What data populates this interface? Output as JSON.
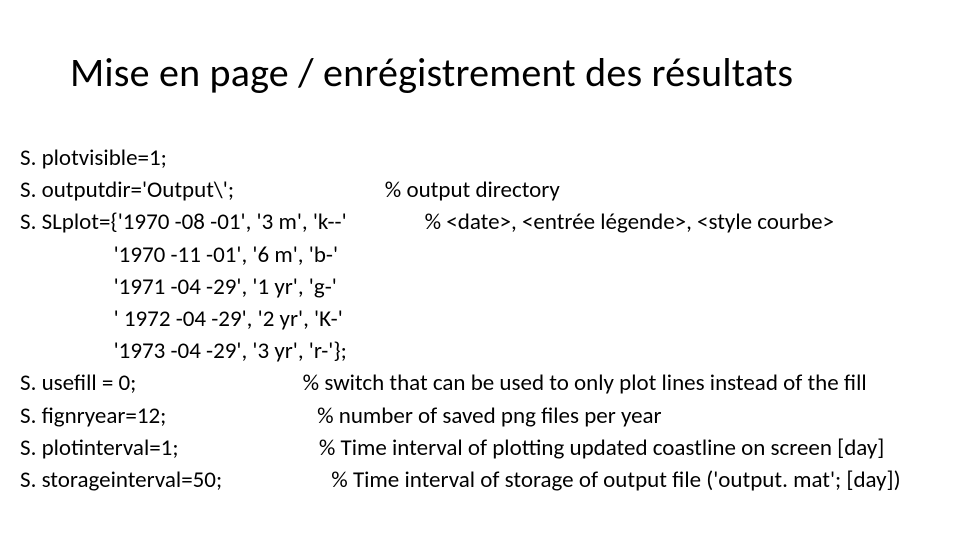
{
  "title": "Mise en page / enrégistrement des résultats",
  "lines": {
    "l1": "S. plotvisible=1;",
    "l2": "S. outputdir='Output\\';                             % output directory",
    "l3": "S. SLplot={'1970 -08 -01', '3 m', 'k--'               % <date>, <entrée légende>, <style courbe>",
    "l4": "                  '1970 -11 -01', '6 m', 'b-'",
    "l5": "                  '1971 -04 -29', '1 yr', 'g-'",
    "l6": "                  ' 1972 -04 -29', '2 yr', 'K-'",
    "l7": "                  '1973 -04 -29', '3 yr', 'r-'};",
    "l8": "S. usefill = 0;                                % switch that can be used to only plot lines instead of the fill",
    "l9": "S. fignryear=12;                             % number of saved png files per year",
    "l10": "S. plotinterval=1;                           % Time interval of plotting updated coastline on screen [day]",
    "l11": "S. storageinterval=50;                     % Time interval of storage of output file ('output. mat'; [day])"
  },
  "style": {
    "title_fontsize": 40,
    "body_fontsize": 23,
    "title_color": "#000000",
    "body_color": "#000000",
    "background_color": "#ffffff",
    "font_family": "Calibri"
  }
}
